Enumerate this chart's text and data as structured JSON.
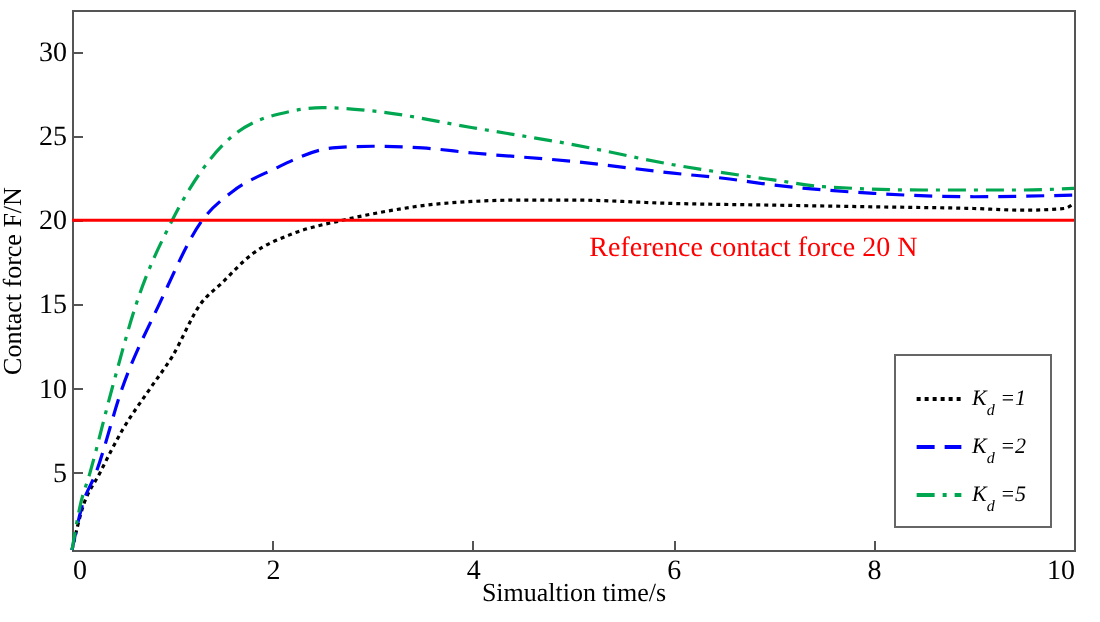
{
  "chart_data": {
    "type": "line",
    "xlabel": "Simualtion time/s",
    "ylabel": "Contact force F/N",
    "xlim": [
      0,
      10
    ],
    "ylim": [
      0.4,
      32.5
    ],
    "xticks": [
      0,
      2,
      4,
      6,
      8,
      10
    ],
    "yticks": [
      5,
      10,
      15,
      20,
      25,
      30
    ],
    "grid": false,
    "legend": "bottom right",
    "marker": "none",
    "ref_lines": [
      {
        "axis": "y",
        "value": 20,
        "label": "Reference contact force 20 N",
        "color": "#ff0000",
        "line_style": "solid"
      }
    ],
    "series": [
      {
        "name": "K$_{d}$ =1",
        "color": "#000000",
        "line_style": "dotted",
        "x": [
          0,
          0.1,
          0.28,
          0.5,
          0.78,
          1.0,
          1.28,
          1.5,
          1.8,
          2.2,
          2.7,
          3.2,
          3.7,
          4.5,
          5,
          6,
          7,
          8,
          9,
          9.5,
          9.9,
          10
        ],
        "values": [
          0.4,
          2.8,
          5,
          7.5,
          10,
          11.9,
          15,
          16.3,
          18,
          19.2,
          20,
          20.6,
          21,
          21.2,
          21.2,
          21,
          20.9,
          20.8,
          20.7,
          20.6,
          20.7,
          21
        ]
      },
      {
        "name": "K$_{d}$ =2",
        "color": "#0000ff",
        "line_style": "dashed",
        "x": [
          0,
          0.1,
          0.24,
          0.5,
          0.87,
          1.3,
          1.6,
          2,
          2.6,
          3,
          3.5,
          4,
          5,
          6,
          6.5,
          7,
          8,
          9,
          10
        ],
        "values": [
          0.4,
          3,
          5,
          10,
          15,
          20,
          21.7,
          23,
          24.3,
          24.4,
          24.3,
          24,
          23.5,
          22.8,
          22.5,
          22.1,
          21.6,
          21.4,
          21.5
        ]
      },
      {
        "name": "K$_{d}$ =5",
        "color": "#00a650",
        "line_style": "dashdot",
        "x": [
          0,
          0.08,
          0.18,
          0.4,
          0.64,
          1.0,
          1.3,
          1.6,
          2.2,
          2.5,
          3,
          4,
          5,
          6,
          7,
          7.5,
          8.5,
          9.5,
          10
        ],
        "values": [
          0.4,
          3,
          5,
          10,
          15,
          20,
          23,
          25,
          26.5,
          26.7,
          26.5,
          25.5,
          24.5,
          23.3,
          22.4,
          22,
          21.8,
          21.8,
          21.9
        ]
      }
    ]
  }
}
